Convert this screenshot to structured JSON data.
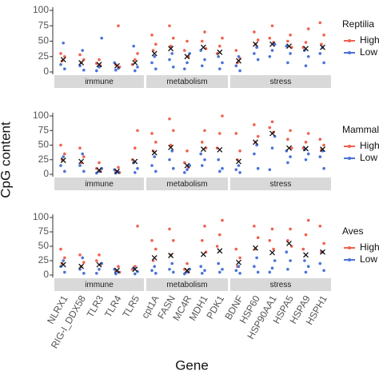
{
  "chart_data": {
    "type": "strip",
    "ylabel": "CpG content",
    "xlabel": "Gene",
    "ylim": [
      0,
      100
    ],
    "yticks": [
      0,
      25,
      50,
      75,
      100
    ],
    "facets": [
      {
        "name": "immune",
        "genes": [
          "NLRX1",
          "RIG-I_DDX58",
          "TLR3",
          "TLR4",
          "TLR5"
        ]
      },
      {
        "name": "metabolism",
        "genes": [
          "cpt1A",
          "FASN",
          "MC4R",
          "MDH1",
          "PDK1"
        ]
      },
      {
        "name": "stress",
        "genes": [
          "BDNF",
          "HSP60",
          "HSP90AA1",
          "HSPA5",
          "HSPA9",
          "HSPH1"
        ]
      }
    ],
    "panels": [
      {
        "legend_title": "Reptilia",
        "series": [
          {
            "name": "High",
            "color": "#f0614e",
            "values": [
              [
                30,
                25,
                18
              ],
              [
                28,
                20,
                15
              ],
              [
                20,
                14,
                10
              ],
              [
                75,
                12,
                8
              ],
              [
                30,
                20,
                12
              ],
              [
                60,
                45,
                35
              ],
              [
                75,
                55,
                42
              ],
              [
                50,
                35,
                25
              ],
              [
                65,
                50,
                38
              ],
              [
                55,
                42,
                30
              ],
              [
                35,
                22,
                15
              ],
              [
                65,
                52,
                45
              ],
              [
                75,
                55,
                48
              ],
              [
                60,
                50,
                40
              ],
              [
                70,
                48,
                40
              ],
              [
                80,
                60,
                45
              ]
            ]
          },
          {
            "name": "Low",
            "color": "#4a72d8",
            "values": [
              [
                47,
                12,
                5
              ],
              [
                35,
                10,
                3
              ],
              [
                55,
                8,
                2
              ],
              [
                15,
                6,
                3
              ],
              [
                42,
                8,
                2
              ],
              [
                25,
                15,
                5
              ],
              [
                30,
                20,
                8
              ],
              [
                30,
                15,
                5
              ],
              [
                35,
                20,
                10
              ],
              [
                25,
                15,
                5
              ],
              [
                25,
                10,
                2
              ],
              [
                40,
                30,
                20
              ],
              [
                45,
                35,
                25
              ],
              [
                42,
                30,
                15
              ],
              [
                35,
                25,
                10
              ],
              [
                40,
                30,
                15
              ]
            ]
          }
        ],
        "means": [
          20,
          15,
          12,
          10,
          15,
          30,
          38,
          25,
          40,
          32,
          18,
          45,
          45,
          42,
          38,
          40
        ]
      },
      {
        "legend_title": "Mammalia",
        "series": [
          {
            "name": "High",
            "color": "#f0614e",
            "values": [
              [
                50,
                35,
                25
              ],
              [
                45,
                30,
                20
              ],
              [
                20,
                10,
                5
              ],
              [
                12,
                6,
                3
              ],
              [
                75,
                45,
                25
              ],
              [
                70,
                55,
                40
              ],
              [
                95,
                75,
                50
              ],
              [
                40,
                20,
                12
              ],
              [
                75,
                55,
                45
              ],
              [
                100,
                70,
                45
              ],
              [
                70,
                40,
                25
              ],
              [
                85,
                65,
                55
              ],
              [
                90,
                80,
                72
              ],
              [
                75,
                60,
                45
              ],
              [
                70,
                55,
                45
              ],
              [
                60,
                50,
                42
              ]
            ]
          },
          {
            "name": "Low",
            "color": "#4a72d8",
            "values": [
              [
                30,
                15,
                5
              ],
              [
                35,
                15,
                5
              ],
              [
                10,
                5,
                2
              ],
              [
                8,
                4,
                2
              ],
              [
                20,
                10,
                3
              ],
              [
                30,
                15,
                5
              ],
              [
                40,
                25,
                10
              ],
              [
                15,
                8,
                3
              ],
              [
                35,
                25,
                15
              ],
              [
                25,
                10,
                5
              ],
              [
                15,
                8,
                3
              ],
              [
                50,
                35,
                10
              ],
              [
                65,
                45,
                8
              ],
              [
                40,
                30,
                20
              ],
              [
                42,
                35,
                25
              ],
              [
                40,
                30,
                10
              ]
            ]
          }
        ],
        "means": [
          24,
          22,
          7,
          5,
          22,
          37,
          46,
          15,
          43,
          42,
          22,
          55,
          70,
          45,
          44,
          43
        ]
      },
      {
        "legend_title": "Aves",
        "series": [
          {
            "name": "High",
            "color": "#f0614e",
            "values": [
              [
                45,
                30,
                20
              ],
              [
                35,
                22,
                15
              ],
              [
                35,
                25,
                18
              ],
              [
                15,
                8,
                5
              ],
              [
                85,
                15,
                10
              ],
              [
                60,
                45,
                25
              ],
              [
                80,
                60,
                35
              ],
              [
                20,
                10,
                5
              ],
              [
                85,
                60,
                40
              ],
              [
                95,
                70,
                50
              ],
              [
                45,
                30,
                15
              ],
              [
                85,
                65,
                45
              ],
              [
                80,
                60,
                45
              ],
              [
                80,
                60,
                50
              ],
              [
                95,
                70,
                45
              ],
              [
                85,
                55,
                40
              ]
            ]
          },
          {
            "name": "Low",
            "color": "#4a72d8",
            "values": [
              [
                25,
                15,
                5
              ],
              [
                30,
                10,
                3
              ],
              [
                20,
                10,
                3
              ],
              [
                10,
                5,
                2
              ],
              [
                12,
                6,
                2
              ],
              [
                15,
                8,
                3
              ],
              [
                20,
                10,
                5
              ],
              [
                10,
                5,
                2
              ],
              [
                15,
                8,
                3
              ],
              [
                20,
                10,
                5
              ],
              [
                15,
                8,
                3
              ],
              [
                30,
                15,
                5
              ],
              [
                25,
                12,
                5
              ],
              [
                40,
                25,
                10
              ],
              [
                25,
                15,
                5
              ],
              [
                40,
                20,
                8
              ]
            ]
          }
        ],
        "means": [
          18,
          15,
          18,
          8,
          10,
          30,
          34,
          8,
          36,
          42,
          22,
          47,
          39,
          55,
          35,
          40
        ]
      }
    ]
  }
}
